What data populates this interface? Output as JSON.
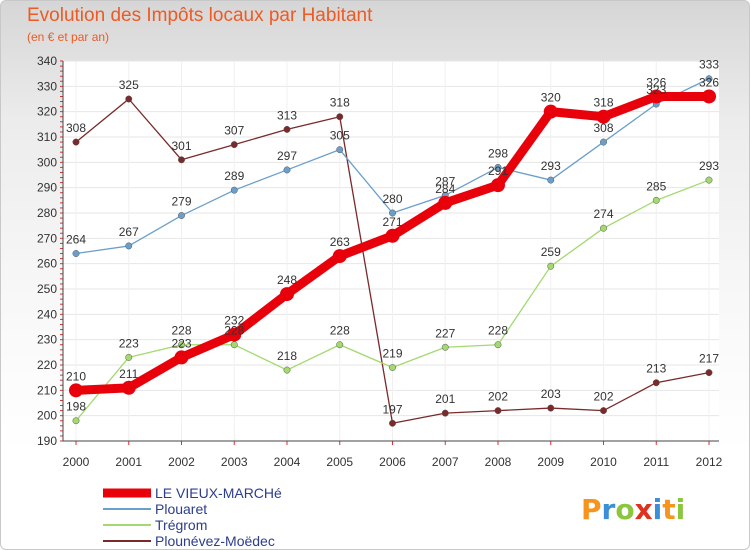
{
  "chart_data": {
    "type": "line",
    "title": "Evolution des Impôts locaux par Habitant",
    "subtitle": "(en € et par an)",
    "x": [
      "2000",
      "2001",
      "2002",
      "2003",
      "2004",
      "2005",
      "2006",
      "2007",
      "2008",
      "2009",
      "2010",
      "2011",
      "2012"
    ],
    "ylim": [
      190,
      340
    ],
    "yticks": [
      190,
      200,
      210,
      220,
      230,
      240,
      250,
      260,
      270,
      280,
      290,
      300,
      310,
      320,
      330,
      340
    ],
    "series": [
      {
        "name": "LE VIEUX-MARCHé",
        "color": "#e8000a",
        "values": [
          210,
          211,
          223,
          232,
          248,
          263,
          271,
          284,
          291,
          320,
          318,
          326,
          326
        ]
      },
      {
        "name": "Plouaret",
        "color": "#6a9fcb",
        "values": [
          264,
          267,
          279,
          289,
          297,
          305,
          280,
          287,
          298,
          293,
          308,
          323,
          333
        ]
      },
      {
        "name": "Trégrom",
        "color": "#a3d96f",
        "values": [
          198,
          223,
          228,
          228,
          218,
          228,
          219,
          227,
          228,
          259,
          274,
          285,
          293
        ]
      },
      {
        "name": "Plounévez-Moëdec",
        "color": "#7a2a2a",
        "values": [
          308,
          325,
          301,
          307,
          313,
          318,
          197,
          201,
          202,
          203,
          202,
          213,
          217
        ]
      }
    ]
  },
  "brand": {
    "logo_text": "Proxiti"
  }
}
